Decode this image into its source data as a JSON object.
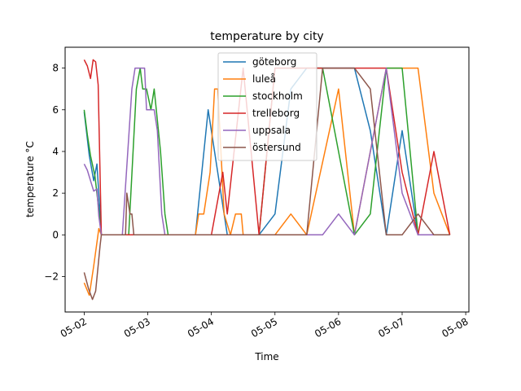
{
  "chart_data": {
    "type": "line",
    "title": "temperature by city",
    "xlabel": "Time",
    "ylabel": "temperature °C",
    "x_unit": "day",
    "xlim": [
      -0.3,
      6.05
    ],
    "ylim": [
      -3.7,
      9.0
    ],
    "xticks": [
      {
        "value": 0,
        "label": "05-02"
      },
      {
        "value": 1,
        "label": "05-03"
      },
      {
        "value": 2,
        "label": "05-04"
      },
      {
        "value": 3,
        "label": "05-05"
      },
      {
        "value": 4,
        "label": "05-06"
      },
      {
        "value": 5,
        "label": "05-07"
      },
      {
        "value": 6,
        "label": "05-08"
      }
    ],
    "yticks": [
      -2,
      0,
      2,
      4,
      6,
      8
    ],
    "grid": false,
    "legend_position": "upper center",
    "series": [
      {
        "name": "göteborg",
        "color": "#1f77b4",
        "points": [
          [
            0,
            5.9
          ],
          [
            0.08,
            3.8
          ],
          [
            0.15,
            2.6
          ],
          [
            0.2,
            3.4
          ],
          [
            0.27,
            0
          ],
          [
            1.75,
            0
          ],
          [
            1.95,
            6
          ],
          [
            2.25,
            0
          ],
          [
            2.75,
            0
          ],
          [
            3.0,
            1
          ],
          [
            3.25,
            7
          ],
          [
            3.5,
            8
          ],
          [
            4.25,
            8
          ],
          [
            4.5,
            5
          ],
          [
            4.75,
            0
          ],
          [
            5.0,
            5
          ],
          [
            5.25,
            0
          ],
          [
            5.75,
            0
          ]
        ]
      },
      {
        "name": "luleå",
        "color": "#ff7f0e",
        "points": [
          [
            0,
            -2.3
          ],
          [
            0.08,
            -2.9
          ],
          [
            0.15,
            -1.5
          ],
          [
            0.23,
            0.3
          ],
          [
            0.27,
            0
          ],
          [
            1.75,
            0
          ],
          [
            1.8,
            1
          ],
          [
            1.88,
            1
          ],
          [
            1.98,
            3
          ],
          [
            2.05,
            7
          ],
          [
            2.1,
            7
          ],
          [
            2.2,
            1
          ],
          [
            2.3,
            0
          ],
          [
            2.38,
            1
          ],
          [
            2.47,
            1
          ],
          [
            2.5,
            0
          ],
          [
            3.0,
            0
          ],
          [
            3.25,
            1
          ],
          [
            3.5,
            0
          ],
          [
            4.0,
            7
          ],
          [
            4.25,
            0
          ],
          [
            4.75,
            8
          ],
          [
            5.25,
            8
          ],
          [
            5.5,
            2
          ],
          [
            5.75,
            0
          ]
        ]
      },
      {
        "name": "stockholm",
        "color": "#2ca02c",
        "points": [
          [
            0,
            6
          ],
          [
            0.05,
            4.8
          ],
          [
            0.1,
            3.8
          ],
          [
            0.17,
            2.8
          ],
          [
            0.23,
            1.2
          ],
          [
            0.27,
            0
          ],
          [
            0.7,
            0
          ],
          [
            0.82,
            7
          ],
          [
            0.88,
            8
          ],
          [
            0.92,
            7
          ],
          [
            0.98,
            7
          ],
          [
            1.05,
            6
          ],
          [
            1.1,
            7
          ],
          [
            1.2,
            4
          ],
          [
            1.27,
            1
          ],
          [
            1.32,
            0
          ],
          [
            2.75,
            0
          ],
          [
            3.0,
            8
          ],
          [
            3.75,
            8
          ],
          [
            4.25,
            0
          ],
          [
            4.5,
            1
          ],
          [
            4.75,
            8
          ],
          [
            5.0,
            8
          ],
          [
            5.25,
            0
          ],
          [
            5.75,
            0
          ]
        ]
      },
      {
        "name": "trelleborg",
        "color": "#d62728",
        "points": [
          [
            0,
            8.4
          ],
          [
            0.05,
            8.1
          ],
          [
            0.1,
            7.5
          ],
          [
            0.14,
            8.4
          ],
          [
            0.18,
            8.3
          ],
          [
            0.22,
            7.2
          ],
          [
            0.27,
            0
          ],
          [
            2.0,
            0
          ],
          [
            2.18,
            3
          ],
          [
            2.25,
            1
          ],
          [
            2.5,
            8
          ],
          [
            2.75,
            0
          ],
          [
            3.0,
            8
          ],
          [
            4.25,
            8
          ],
          [
            4.5,
            8
          ],
          [
            4.75,
            8
          ],
          [
            5.0,
            3
          ],
          [
            5.25,
            0
          ],
          [
            5.5,
            4
          ],
          [
            5.75,
            0
          ]
        ]
      },
      {
        "name": "uppsala",
        "color": "#9467bd",
        "points": [
          [
            0,
            3.4
          ],
          [
            0.05,
            3.1
          ],
          [
            0.1,
            2.6
          ],
          [
            0.15,
            2.1
          ],
          [
            0.2,
            2.2
          ],
          [
            0.23,
            0.9
          ],
          [
            0.27,
            0
          ],
          [
            0.6,
            0
          ],
          [
            0.75,
            7
          ],
          [
            0.8,
            8
          ],
          [
            0.95,
            8
          ],
          [
            0.98,
            6
          ],
          [
            1.1,
            6
          ],
          [
            1.15,
            5
          ],
          [
            1.22,
            1
          ],
          [
            1.27,
            0
          ],
          [
            3.75,
            0
          ],
          [
            4.0,
            1
          ],
          [
            4.25,
            0
          ],
          [
            4.75,
            8
          ],
          [
            5.0,
            2
          ],
          [
            5.25,
            0
          ],
          [
            5.75,
            0
          ]
        ]
      },
      {
        "name": "östersund",
        "color": "#8c564b",
        "points": [
          [
            0,
            -1.8
          ],
          [
            0.07,
            -2.6
          ],
          [
            0.13,
            -3.1
          ],
          [
            0.18,
            -2.7
          ],
          [
            0.25,
            -0.5
          ],
          [
            0.27,
            0
          ],
          [
            0.65,
            0
          ],
          [
            0.67,
            2
          ],
          [
            0.72,
            1
          ],
          [
            0.75,
            1
          ],
          [
            0.78,
            0
          ],
          [
            3.5,
            0
          ],
          [
            3.75,
            8
          ],
          [
            4.25,
            8
          ],
          [
            4.5,
            7
          ],
          [
            4.75,
            0
          ],
          [
            4.75,
            0
          ],
          [
            5.0,
            0
          ],
          [
            5.25,
            1
          ],
          [
            5.5,
            0
          ],
          [
            5.75,
            0
          ]
        ]
      }
    ]
  }
}
